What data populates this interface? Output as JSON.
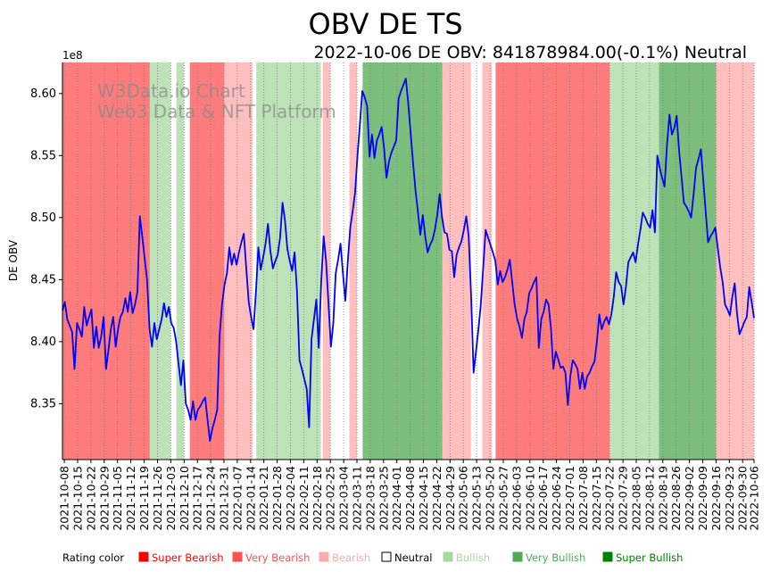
{
  "chart_data": {
    "type": "line",
    "title": "OBV DE TS",
    "subtitle": "2022-10-06 DE OBV: 841878984.00(-0.1%) Neutral",
    "ylabel": "DE OBV",
    "xlabel": "",
    "y_offset_label": "1e8",
    "ylim": [
      8.305,
      8.625
    ],
    "yticks": [
      8.35,
      8.4,
      8.45,
      8.5,
      8.55,
      8.6
    ],
    "ytick_labels": [
      "8.35",
      "8.40",
      "8.45",
      "8.50",
      "8.55",
      "8.60"
    ],
    "x_start": "2021-10-07",
    "x_end": "2022-10-06",
    "x_tick_labels": [
      "2021-10-08",
      "2021-10-15",
      "2021-10-22",
      "2021-10-29",
      "2021-11-05",
      "2021-11-12",
      "2021-11-19",
      "2021-11-26",
      "2021-12-03",
      "2021-12-10",
      "2021-12-17",
      "2021-12-24",
      "2021-12-31",
      "2022-01-07",
      "2022-01-14",
      "2022-01-21",
      "2022-01-28",
      "2022-02-04",
      "2022-02-11",
      "2022-02-18",
      "2022-02-25",
      "2022-03-04",
      "2022-03-11",
      "2022-03-18",
      "2022-03-25",
      "2022-04-01",
      "2022-04-08",
      "2022-04-15",
      "2022-04-22",
      "2022-04-29",
      "2022-05-06",
      "2022-05-13",
      "2022-05-20",
      "2022-05-27",
      "2022-06-03",
      "2022-06-10",
      "2022-06-17",
      "2022-06-24",
      "2022-07-01",
      "2022-07-08",
      "2022-07-15",
      "2022-07-22",
      "2022-07-29",
      "2022-08-05",
      "2022-08-12",
      "2022-08-19",
      "2022-08-26",
      "2022-09-02",
      "2022-09-09",
      "2022-09-16",
      "2022-09-23",
      "2022-09-30",
      "2022-10-06"
    ],
    "series": [
      {
        "name": "DE OBV",
        "color": "#0000ff",
        "values": [
          8.425,
          8.432,
          8.418,
          8.413,
          8.408,
          8.378,
          8.415,
          8.41,
          8.404,
          8.428,
          8.413,
          8.42,
          8.426,
          8.395,
          8.412,
          8.395,
          8.404,
          8.42,
          8.378,
          8.393,
          8.41,
          8.42,
          8.396,
          8.41,
          8.42,
          8.424,
          8.435,
          8.424,
          8.44,
          8.423,
          8.43,
          8.44,
          8.501,
          8.485,
          8.467,
          8.45,
          8.41,
          8.396,
          8.415,
          8.402,
          8.41,
          8.418,
          8.431,
          8.42,
          8.428,
          8.415,
          8.411,
          8.4,
          8.382,
          8.365,
          8.385,
          8.35,
          8.345,
          8.337,
          8.352,
          8.337,
          8.345,
          8.348,
          8.352,
          8.355,
          8.337,
          8.32,
          8.33,
          8.337,
          8.345,
          8.405,
          8.43,
          8.446,
          8.455,
          8.476,
          8.462,
          8.471,
          8.462,
          8.472,
          8.48,
          8.487,
          8.46,
          8.432,
          8.42,
          8.41,
          8.44,
          8.476,
          8.458,
          8.468,
          8.479,
          8.495,
          8.473,
          8.459,
          8.465,
          8.47,
          8.484,
          8.512,
          8.498,
          8.475,
          8.465,
          8.457,
          8.472,
          8.441,
          8.385,
          8.378,
          8.37,
          8.362,
          8.331,
          8.402,
          8.418,
          8.434,
          8.395,
          8.447,
          8.485,
          8.465,
          8.431,
          8.396,
          8.415,
          8.455,
          8.466,
          8.479,
          8.455,
          8.433,
          8.465,
          8.492,
          8.505,
          8.52,
          8.55,
          8.575,
          8.602,
          8.597,
          8.59,
          8.549,
          8.567,
          8.548,
          8.562,
          8.567,
          8.573,
          8.556,
          8.532,
          8.545,
          8.552,
          8.557,
          8.562,
          8.596,
          8.602,
          8.607,
          8.612,
          8.592,
          8.568,
          8.544,
          8.522,
          8.505,
          8.486,
          8.502,
          8.485,
          8.472,
          8.478,
          8.482,
          8.49,
          8.502,
          8.519,
          8.5,
          8.488,
          8.487,
          8.474,
          8.473,
          8.452,
          8.47,
          8.476,
          8.481,
          8.49,
          8.501,
          8.485,
          8.436,
          8.375,
          8.392,
          8.41,
          8.43,
          8.46,
          8.49,
          8.484,
          8.478,
          8.472,
          8.465,
          8.446,
          8.457,
          8.448,
          8.452,
          8.458,
          8.466,
          8.448,
          8.43,
          8.419,
          8.412,
          8.403,
          8.418,
          8.424,
          8.439,
          8.443,
          8.448,
          8.452,
          8.395,
          8.418,
          8.424,
          8.434,
          8.43,
          8.411,
          8.378,
          8.392,
          8.386,
          8.379,
          8.38,
          8.375,
          8.349,
          8.372,
          8.385,
          8.382,
          8.378,
          8.362,
          8.375,
          8.362,
          8.372,
          8.375,
          8.38,
          8.384,
          8.4,
          8.422,
          8.41,
          8.416,
          8.42,
          8.414,
          8.422,
          8.436,
          8.456,
          8.448,
          8.445,
          8.43,
          8.444,
          8.464,
          8.468,
          8.472,
          8.464,
          8.478,
          8.49,
          8.504,
          8.5,
          8.495,
          8.492,
          8.506,
          8.488,
          8.55,
          8.54,
          8.532,
          8.525,
          8.558,
          8.583,
          8.567,
          8.572,
          8.582,
          8.554,
          8.533,
          8.512,
          8.509,
          8.505,
          8.5,
          8.519,
          8.54,
          8.547,
          8.555,
          8.53,
          8.505,
          8.48,
          8.485,
          8.488,
          8.492,
          8.475,
          8.46,
          8.448,
          8.43,
          8.426,
          8.421,
          8.436,
          8.447,
          8.422,
          8.406,
          8.411,
          8.416,
          8.42,
          8.444,
          8.432,
          8.419
        ]
      }
    ],
    "rating_bands": [
      {
        "from": "2021-10-07",
        "to": "2021-11-21",
        "rating": "Very Bearish"
      },
      {
        "from": "2021-11-22",
        "to": "2021-12-02",
        "rating": "Bullish"
      },
      {
        "from": "2021-12-06",
        "to": "2021-12-09",
        "rating": "Bullish"
      },
      {
        "from": "2021-12-13",
        "to": "2021-12-30",
        "rating": "Very Bearish"
      },
      {
        "from": "2021-12-31",
        "to": "2022-01-14",
        "rating": "Bearish"
      },
      {
        "from": "2022-01-17",
        "to": "2022-02-19",
        "rating": "Bullish"
      },
      {
        "from": "2022-02-21",
        "to": "2022-02-24",
        "rating": "Bearish"
      },
      {
        "from": "2022-03-07",
        "to": "2022-03-10",
        "rating": "Bearish"
      },
      {
        "from": "2022-03-14",
        "to": "2022-04-24",
        "rating": "Very Bullish"
      },
      {
        "from": "2022-04-25",
        "to": "2022-05-09",
        "rating": "Bearish"
      },
      {
        "from": "2022-05-16",
        "to": "2022-05-20",
        "rating": "Bearish"
      },
      {
        "from": "2022-05-23",
        "to": "2022-07-21",
        "rating": "Very Bearish"
      },
      {
        "from": "2022-07-22",
        "to": "2022-08-09",
        "rating": "Bullish"
      },
      {
        "from": "2022-08-10",
        "to": "2022-08-16",
        "rating": "Bullish"
      },
      {
        "from": "2022-08-17",
        "to": "2022-09-15",
        "rating": "Very Bullish"
      },
      {
        "from": "2022-09-16",
        "to": "2022-10-06",
        "rating": "Bearish"
      }
    ],
    "rating_colors": {
      "Super Bearish": "#ff0000",
      "Very Bearish": "#ff5050",
      "Bearish": "#ffaaaa",
      "Neutral": "#ffffff",
      "Bullish": "#a8d8a0",
      "Very Bullish": "#50aa50",
      "Super Bullish": "#008000"
    },
    "legend": {
      "title": "Rating color",
      "items": [
        {
          "label": "Super Bearish",
          "color": "#ff0000"
        },
        {
          "label": "Very Bearish",
          "color": "#ff5050"
        },
        {
          "label": "Bearish",
          "color": "#ffaaaa"
        },
        {
          "label": "Neutral",
          "color": "#ffffff"
        },
        {
          "label": "Bullish",
          "color": "#a8d8a0"
        },
        {
          "label": "Very Bullish",
          "color": "#50aa50"
        },
        {
          "label": "Super Bullish",
          "color": "#008000"
        }
      ]
    },
    "watermark": [
      "W3Data.io Chart",
      "Web3 Data & NFT Platform"
    ]
  }
}
